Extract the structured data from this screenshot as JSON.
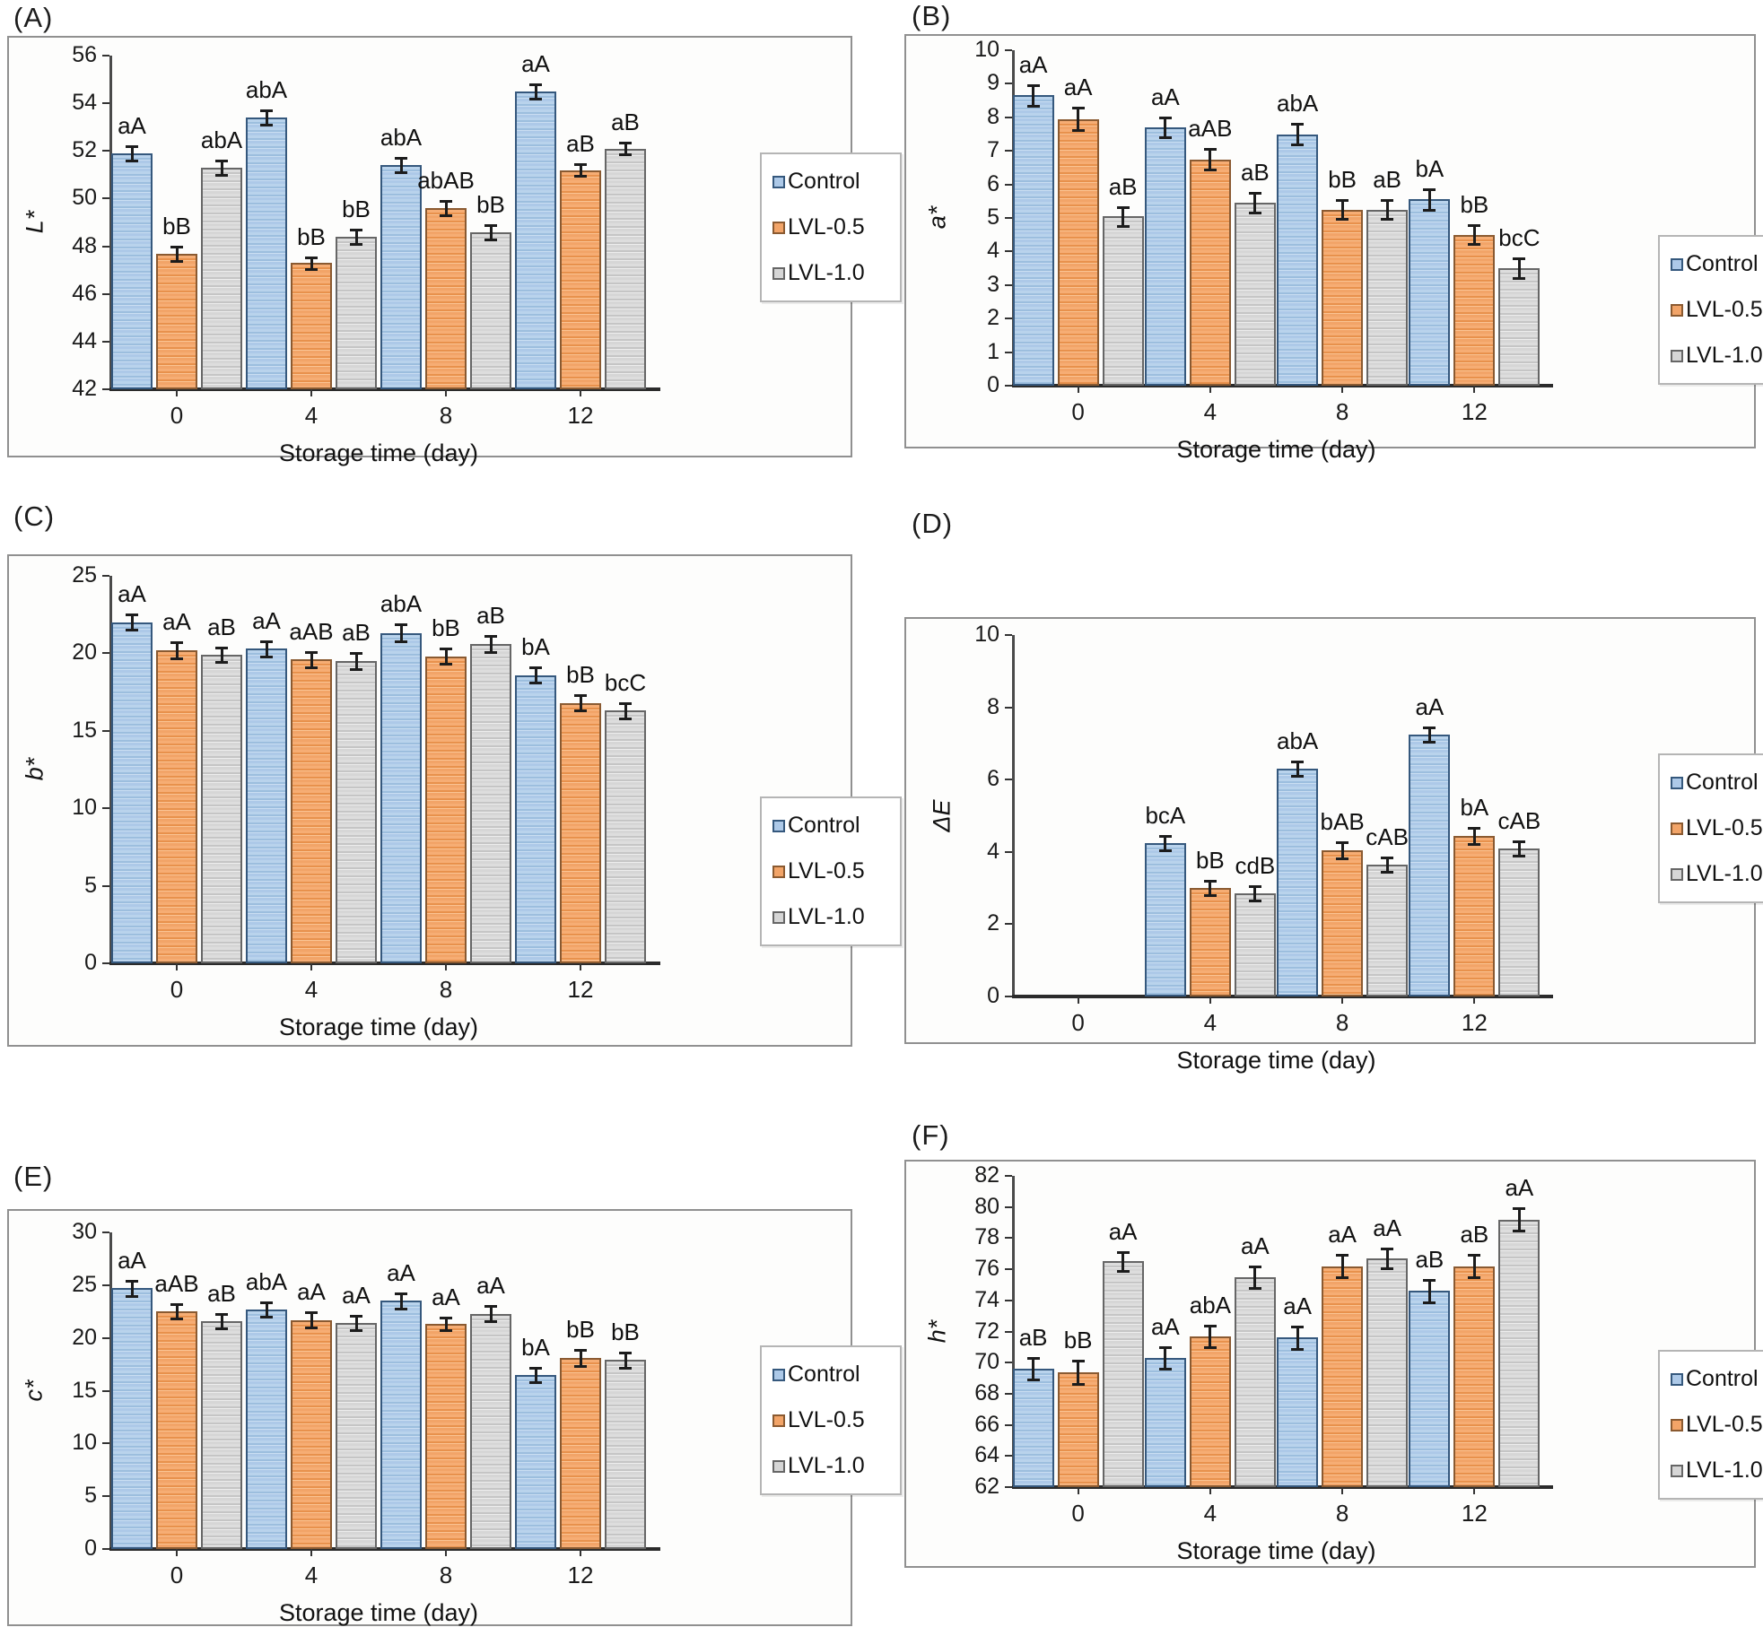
{
  "legend": {
    "items": [
      {
        "key": "control",
        "label": "Control"
      },
      {
        "key": "lvl05",
        "label": "LVL-0.5"
      },
      {
        "key": "lvl10",
        "label": "LVL-1.0"
      }
    ]
  },
  "colors": {
    "control_fill": "#adc9e8",
    "control_border": "#35587d",
    "lvl05_fill": "#f2a468",
    "lvl05_border": "#8a5a31",
    "lvl10_fill": "#d6d6d6",
    "lvl10_border": "#666666",
    "error_bar": "#1c1c1c",
    "frame_border": "#909090"
  },
  "chart_data": [
    {
      "type": "bar",
      "panel_label": "(A)",
      "ylabel": "L*",
      "xlabel": "Storage time (day)",
      "ymin": 42,
      "ymax": 56,
      "ystep": 2,
      "grid": false,
      "legend_position": "right",
      "categories": [
        "0",
        "4",
        "8",
        "12"
      ],
      "series": [
        {
          "name": "Control",
          "key": "control",
          "values": [
            51.9,
            53.4,
            51.4,
            54.5
          ],
          "errors": [
            0.3,
            0.3,
            0.3,
            0.3
          ],
          "sig": [
            "aA",
            "abA",
            "abA",
            "aA"
          ]
        },
        {
          "name": "LVL-0.5",
          "key": "lvl05",
          "values": [
            47.7,
            47.3,
            49.6,
            51.2
          ],
          "errors": [
            0.3,
            0.25,
            0.3,
            0.25
          ],
          "sig": [
            "bB",
            "bB",
            "abAB",
            "aB"
          ]
        },
        {
          "name": "LVL-1.0",
          "key": "lvl10",
          "values": [
            51.3,
            48.4,
            48.6,
            52.1
          ],
          "errors": [
            0.3,
            0.3,
            0.3,
            0.25
          ],
          "sig": [
            "abA",
            "bB",
            "bB",
            "aB"
          ]
        }
      ]
    },
    {
      "type": "bar",
      "panel_label": "(B)",
      "ylabel": "a*",
      "xlabel": "Storage time (day)",
      "ymin": 0,
      "ymax": 10,
      "ystep": 1,
      "grid": false,
      "legend_position": "right",
      "categories": [
        "0",
        "4",
        "8",
        "12"
      ],
      "series": [
        {
          "name": "Control",
          "key": "control",
          "values": [
            8.65,
            7.7,
            7.5,
            5.55
          ],
          "errors": [
            0.3,
            0.3,
            0.3,
            0.3
          ],
          "sig": [
            "aA",
            "aA",
            "abA",
            "bA"
          ]
        },
        {
          "name": "LVL-0.5",
          "key": "lvl05",
          "values": [
            7.95,
            6.75,
            5.25,
            4.5
          ],
          "errors": [
            0.33,
            0.3,
            0.28,
            0.28
          ],
          "sig": [
            "aA",
            "aAB",
            "bB",
            "bB"
          ]
        },
        {
          "name": "LVL-1.0",
          "key": "lvl10",
          "values": [
            5.05,
            5.45,
            5.25,
            3.5
          ],
          "errors": [
            0.28,
            0.3,
            0.28,
            0.3
          ],
          "sig": [
            "aB",
            "aB",
            "aB",
            "bcC"
          ]
        }
      ]
    },
    {
      "type": "bar",
      "panel_label": "(C)",
      "ylabel": "b*",
      "xlabel": "Storage time (day)",
      "ymin": 0,
      "ymax": 25,
      "ystep": 5,
      "grid": false,
      "legend_position": "right",
      "categories": [
        "0",
        "4",
        "8",
        "12"
      ],
      "series": [
        {
          "name": "Control",
          "key": "control",
          "values": [
            22.0,
            20.3,
            21.3,
            18.6
          ],
          "errors": [
            0.5,
            0.5,
            0.55,
            0.5
          ],
          "sig": [
            "aA",
            "aA",
            "abA",
            "bA"
          ]
        },
        {
          "name": "LVL-0.5",
          "key": "lvl05",
          "values": [
            20.2,
            19.6,
            19.8,
            16.8
          ],
          "errors": [
            0.5,
            0.5,
            0.5,
            0.5
          ],
          "sig": [
            "aA",
            "aAB",
            "bB",
            "bB"
          ]
        },
        {
          "name": "LVL-1.0",
          "key": "lvl10",
          "values": [
            19.9,
            19.5,
            20.6,
            16.3
          ],
          "errors": [
            0.45,
            0.5,
            0.5,
            0.5
          ],
          "sig": [
            "aB",
            "aB",
            "aB",
            "bcC"
          ]
        }
      ]
    },
    {
      "type": "bar",
      "panel_label": "(D)",
      "ylabel": "ΔE",
      "xlabel": "Storage time (day)",
      "ymin": 0,
      "ymax": 10,
      "ystep": 2,
      "grid": false,
      "legend_position": "right",
      "categories": [
        "0",
        "4",
        "8",
        "12"
      ],
      "series": [
        {
          "name": "Control",
          "key": "control",
          "values": [
            null,
            4.25,
            6.3,
            7.25
          ],
          "errors": [
            null,
            0.2,
            0.2,
            0.2
          ],
          "sig": [
            null,
            "bcA",
            "abA",
            "aA"
          ]
        },
        {
          "name": "LVL-0.5",
          "key": "lvl05",
          "values": [
            null,
            3.0,
            4.05,
            4.45
          ],
          "errors": [
            null,
            0.2,
            0.22,
            0.22
          ],
          "sig": [
            null,
            "bB",
            "bAB",
            "bA"
          ]
        },
        {
          "name": "LVL-1.0",
          "key": "lvl10",
          "values": [
            null,
            2.85,
            3.65,
            4.1
          ],
          "errors": [
            null,
            0.2,
            0.2,
            0.2
          ],
          "sig": [
            null,
            "cdB",
            "cAB",
            "cAB"
          ]
        }
      ]
    },
    {
      "type": "bar",
      "panel_label": "(E)",
      "ylabel": "c*",
      "xlabel": "Storage time (day)",
      "ymin": 0,
      "ymax": 30,
      "ystep": 5,
      "grid": false,
      "legend_position": "right",
      "categories": [
        "0",
        "4",
        "8",
        "12"
      ],
      "series": [
        {
          "name": "Control",
          "key": "control",
          "values": [
            24.7,
            22.7,
            23.5,
            16.5
          ],
          "errors": [
            0.7,
            0.7,
            0.7,
            0.7
          ],
          "sig": [
            "aA",
            "abA",
            "aA",
            "bA"
          ]
        },
        {
          "name": "LVL-0.5",
          "key": "lvl05",
          "values": [
            22.5,
            21.7,
            21.3,
            18.1
          ],
          "errors": [
            0.7,
            0.7,
            0.6,
            0.8
          ],
          "sig": [
            "aAB",
            "aA",
            "aA",
            "bB"
          ]
        },
        {
          "name": "LVL-1.0",
          "key": "lvl10",
          "values": [
            21.6,
            21.4,
            22.3,
            17.9
          ],
          "errors": [
            0.7,
            0.7,
            0.7,
            0.7
          ],
          "sig": [
            "aB",
            "aA",
            "aA",
            "bB"
          ]
        }
      ]
    },
    {
      "type": "bar",
      "panel_label": "(F)",
      "ylabel": "h*",
      "xlabel": "Storage time (day)",
      "ymin": 62,
      "ymax": 82,
      "ystep": 2,
      "grid": false,
      "legend_position": "right",
      "categories": [
        "0",
        "4",
        "8",
        "12"
      ],
      "series": [
        {
          "name": "Control",
          "key": "control",
          "values": [
            69.6,
            70.3,
            71.6,
            74.6
          ],
          "errors": [
            0.7,
            0.7,
            0.7,
            0.7
          ],
          "sig": [
            "aB",
            "aA",
            "aA",
            "aB"
          ]
        },
        {
          "name": "LVL-0.5",
          "key": "lvl05",
          "values": [
            69.4,
            71.7,
            76.2,
            76.2
          ],
          "errors": [
            0.75,
            0.7,
            0.7,
            0.7
          ],
          "sig": [
            "bB",
            "abA",
            "aA",
            "aB"
          ]
        },
        {
          "name": "LVL-1.0",
          "key": "lvl10",
          "values": [
            76.5,
            75.5,
            76.7,
            79.2
          ],
          "errors": [
            0.6,
            0.7,
            0.65,
            0.7
          ],
          "sig": [
            "aA",
            "aA",
            "aA",
            "aA"
          ]
        }
      ]
    }
  ]
}
